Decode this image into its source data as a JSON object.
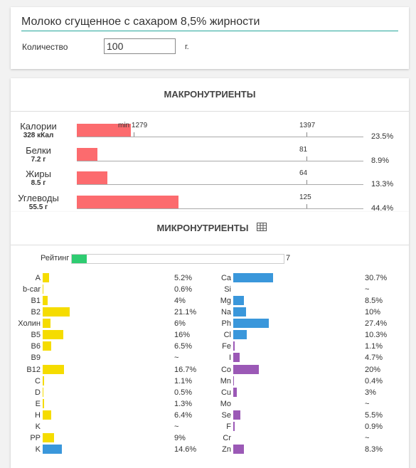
{
  "header": {
    "title": "Молоко сгущенное с сахаром 8,5% жирности",
    "quantity_label": "Количество",
    "quantity": 100,
    "unit": "г."
  },
  "macros": {
    "title": "МАКРОНУТРИЕНТЫ",
    "color": "#fc6b6e",
    "rows": [
      {
        "name": "Калории",
        "amount": "328 кКал",
        "value": 23.5,
        "label": "23.5%",
        "target": 1397,
        "min": "min 1279"
      },
      {
        "name": "Белки",
        "amount": "7.2 г",
        "value": 8.9,
        "label": "8.9%",
        "target": 81
      },
      {
        "name": "Жиры",
        "amount": "8.5 г",
        "value": 13.3,
        "label": "13.3%",
        "target": 64
      },
      {
        "name": "Углеводы",
        "amount": "55.5 г",
        "value": 44.4,
        "label": "44.4%",
        "target": 125
      }
    ]
  },
  "micros": {
    "title": "МИКРОНУТРИЕНТЫ",
    "rating_label": "Рейтинг",
    "rating": 7,
    "rating_color": "#2ecc71",
    "vitamins": [
      {
        "name": "A",
        "value": 5.2,
        "label": "5.2%",
        "color": "#f5dc00"
      },
      {
        "name": "b-car",
        "value": 0.6,
        "label": "0.6%",
        "color": "#f5dc00"
      },
      {
        "name": "B1",
        "value": 4,
        "label": "4%",
        "color": "#f5dc00"
      },
      {
        "name": "B2",
        "value": 21.1,
        "label": "21.1%",
        "color": "#f5dc00"
      },
      {
        "name": "Холин",
        "value": 6,
        "label": "6%",
        "color": "#f5dc00"
      },
      {
        "name": "B5",
        "value": 16,
        "label": "16%",
        "color": "#f5dc00"
      },
      {
        "name": "B6",
        "value": 6.5,
        "label": "6.5%",
        "color": "#f5dc00"
      },
      {
        "name": "B9",
        "value": null,
        "label": "~",
        "color": "#f5dc00"
      },
      {
        "name": "B12",
        "value": 16.7,
        "label": "16.7%",
        "color": "#f5dc00"
      },
      {
        "name": "C",
        "value": 1.1,
        "label": "1.1%",
        "color": "#f5dc00"
      },
      {
        "name": "D",
        "value": 0.5,
        "label": "0.5%",
        "color": "#f5dc00"
      },
      {
        "name": "E",
        "value": 1.3,
        "label": "1.3%",
        "color": "#f5dc00"
      },
      {
        "name": "H",
        "value": 6.4,
        "label": "6.4%",
        "color": "#f5dc00"
      },
      {
        "name": "K",
        "value": null,
        "label": "~",
        "color": "#f5dc00"
      },
      {
        "name": "PP",
        "value": 9,
        "label": "9%",
        "color": "#f5dc00"
      },
      {
        "name": "K",
        "value": 14.6,
        "label": "14.6%",
        "color": "#3a97db"
      }
    ],
    "minerals": [
      {
        "name": "Ca",
        "value": 30.7,
        "label": "30.7%",
        "color": "#3a97db"
      },
      {
        "name": "Si",
        "value": null,
        "label": "~",
        "color": "#3a97db"
      },
      {
        "name": "Mg",
        "value": 8.5,
        "label": "8.5%",
        "color": "#3a97db"
      },
      {
        "name": "Na",
        "value": 10,
        "label": "10%",
        "color": "#3a97db"
      },
      {
        "name": "Ph",
        "value": 27.4,
        "label": "27.4%",
        "color": "#3a97db"
      },
      {
        "name": "Cl",
        "value": 10.3,
        "label": "10.3%",
        "color": "#3a97db"
      },
      {
        "name": "Fe",
        "value": 1.1,
        "label": "1.1%",
        "color": "#9b59b6"
      },
      {
        "name": "I",
        "value": 4.7,
        "label": "4.7%",
        "color": "#9b59b6"
      },
      {
        "name": "Co",
        "value": 20,
        "label": "20%",
        "color": "#9b59b6"
      },
      {
        "name": "Mn",
        "value": 0.4,
        "label": "0.4%",
        "color": "#9b59b6"
      },
      {
        "name": "Cu",
        "value": 3,
        "label": "3%",
        "color": "#9b59b6"
      },
      {
        "name": "Mo",
        "value": null,
        "label": "~",
        "color": "#9b59b6"
      },
      {
        "name": "Se",
        "value": 5.5,
        "label": "5.5%",
        "color": "#9b59b6"
      },
      {
        "name": "F",
        "value": 0.9,
        "label": "0.9%",
        "color": "#9b59b6"
      },
      {
        "name": "Cr",
        "value": null,
        "label": "~",
        "color": "#9b59b6"
      },
      {
        "name": "Zn",
        "value": 8.3,
        "label": "8.3%",
        "color": "#9b59b6"
      }
    ]
  }
}
